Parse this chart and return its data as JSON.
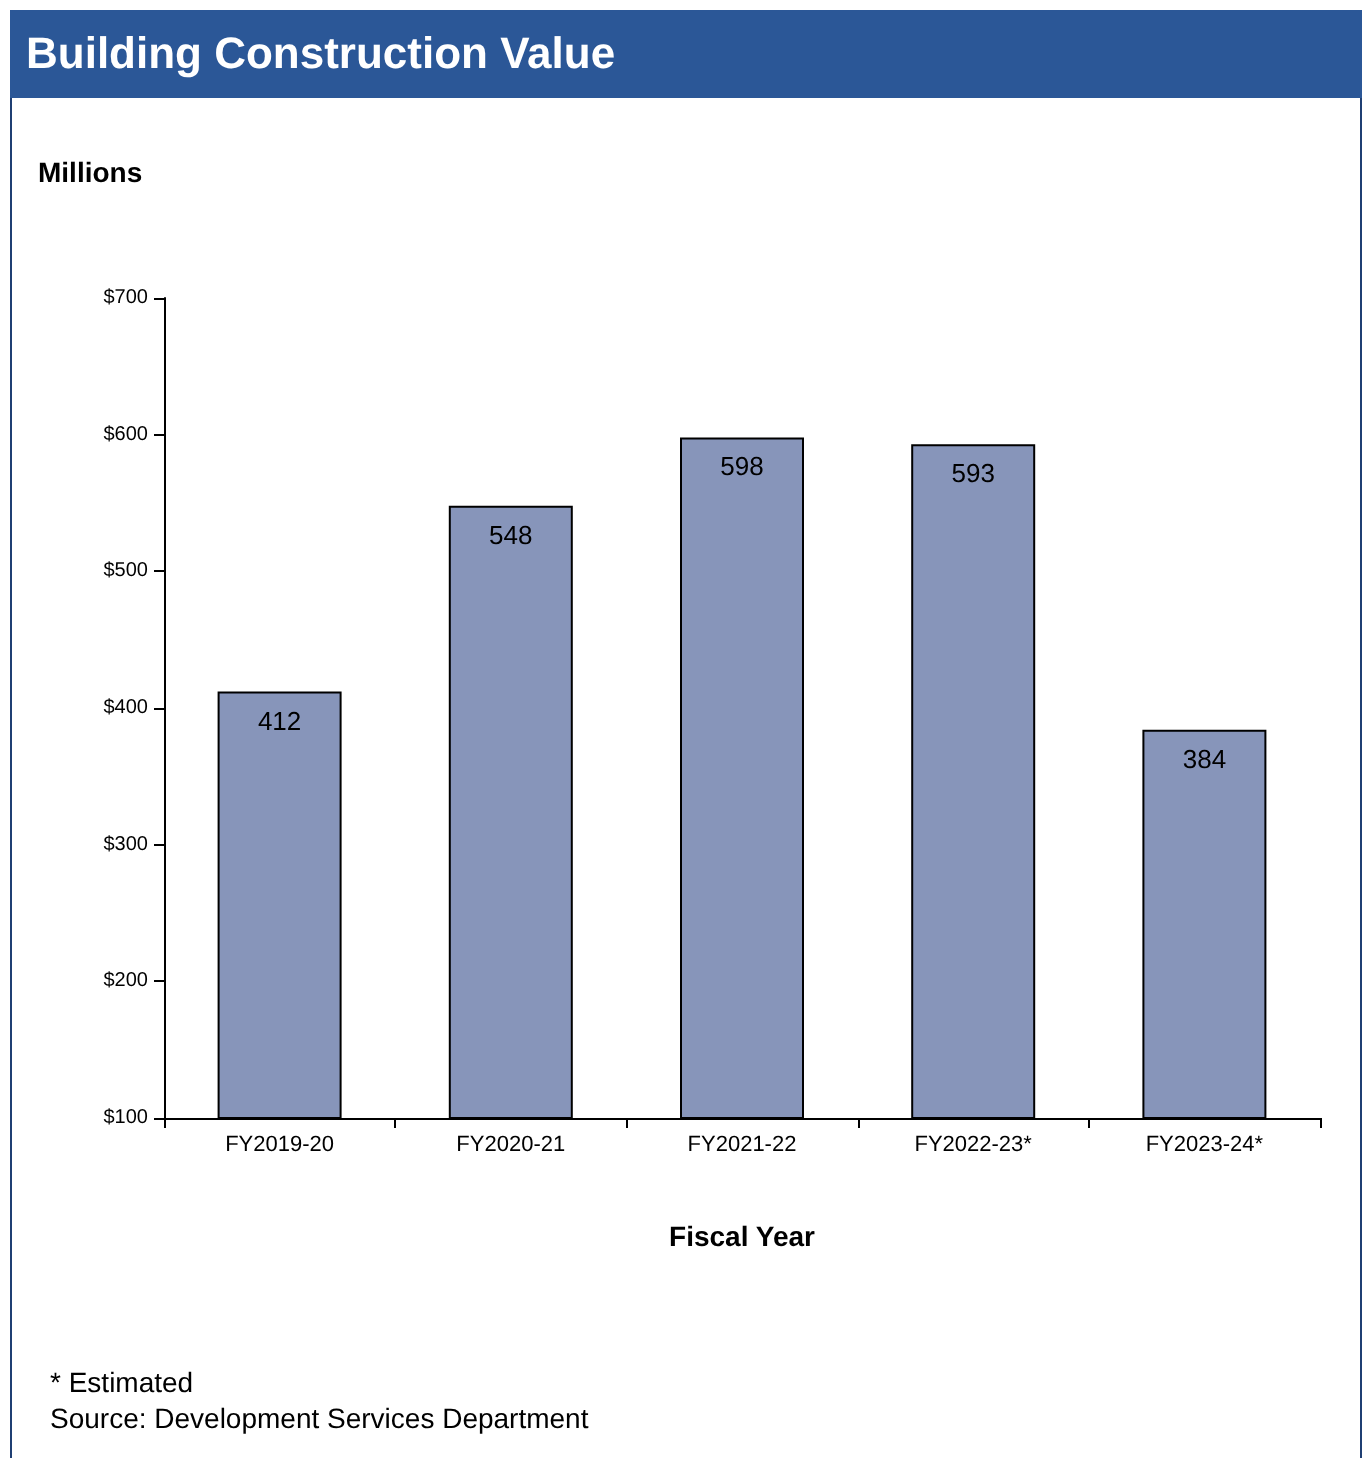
{
  "chart_data": {
    "type": "bar",
    "title": "Building Construction Value",
    "ylabel": "Millions",
    "xlabel": "Fiscal Year",
    "categories": [
      "FY2019-20",
      "FY2020-21",
      "FY2021-22",
      "FY2022-23*",
      "FY2023-24*"
    ],
    "values": [
      412,
      548,
      598,
      593,
      384
    ],
    "color": "#8795ba",
    "data_labels": true,
    "grid": false,
    "ylim": [
      100,
      700
    ],
    "yticks": [
      {
        "value": 100,
        "label": "$100"
      },
      {
        "value": 200,
        "label": "$200"
      },
      {
        "value": 300,
        "label": "$300"
      },
      {
        "value": 400,
        "label": "$400"
      },
      {
        "value": 500,
        "label": "$500"
      },
      {
        "value": 600,
        "label": "$600"
      },
      {
        "value": 700,
        "label": "$700"
      }
    ],
    "annotations": [
      "* Estimated",
      "Source: Development Services Department"
    ]
  }
}
